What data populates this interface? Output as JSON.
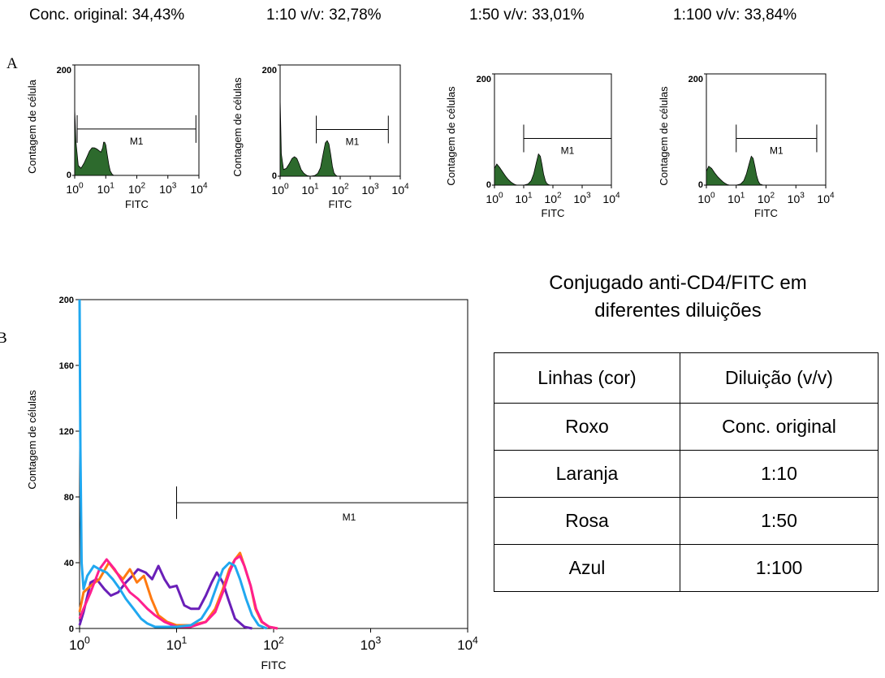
{
  "captions": [
    "Conc. original: 34,43%",
    "1:10 v/v: 32,78%",
    "1:50 v/v: 33,01%",
    "1:100 v/v: 33,84%"
  ],
  "panel_labels": [
    "A",
    "B"
  ],
  "colors": {
    "fill_green": "#2d6a2d",
    "purple": "#6a1fb8",
    "orange": "#ff7a10",
    "pink": "#ff1f8f",
    "blue": "#20a8f0"
  },
  "chart_data": [
    {
      "type": "area",
      "panel": "A1",
      "xlabel": "FITC",
      "ylabel": "Contagem de célula",
      "x_scale": "log",
      "xlim": [
        1,
        10000
      ],
      "ylim": [
        0,
        200
      ],
      "yticks": [
        "0",
        "200"
      ],
      "gate": {
        "label": "M1",
        "from": 1.2,
        "to": 8000
      },
      "x": [
        1,
        1.1,
        1.3,
        1.6,
        2,
        2.5,
        3,
        3.6,
        4.3,
        5.1,
        6,
        7,
        8,
        8.5,
        9.2,
        10,
        11,
        12.5,
        14,
        16,
        18,
        21,
        25,
        30,
        35
      ],
      "values": [
        120,
        60,
        18,
        13,
        22,
        34,
        44,
        50,
        50,
        48,
        45,
        42,
        50,
        60,
        60,
        55,
        40,
        20,
        8,
        2,
        0,
        0,
        0,
        0,
        0
      ]
    },
    {
      "type": "area",
      "panel": "A2",
      "xlabel": "FITC",
      "ylabel": "Contagem de células",
      "x_scale": "log",
      "xlim": [
        1,
        10000
      ],
      "ylim": [
        0,
        200
      ],
      "yticks": [
        "0",
        "200"
      ],
      "gate": {
        "label": "M1",
        "from": 16,
        "to": 4000
      },
      "x": [
        1,
        1.1,
        1.3,
        1.6,
        2,
        2.5,
        3,
        3.6,
        4.3,
        5,
        6,
        7,
        8,
        10,
        14,
        18,
        22,
        27,
        32,
        37,
        42,
        48,
        55,
        62,
        70,
        80
      ],
      "values": [
        140,
        40,
        12,
        14,
        22,
        32,
        35,
        32,
        22,
        12,
        6,
        3,
        1,
        0,
        1,
        5,
        15,
        40,
        60,
        64,
        58,
        40,
        18,
        6,
        2,
        0
      ]
    },
    {
      "type": "area",
      "panel": "A3",
      "xlabel": "FITC",
      "ylabel": "Contagem de células",
      "x_scale": "log",
      "xlim": [
        1,
        10000
      ],
      "ylim": [
        0,
        200
      ],
      "yticks": [
        "0",
        "200"
      ],
      "gate": {
        "label": "M1",
        "from": 10,
        "to": 10000
      },
      "x": [
        1,
        1.2,
        1.5,
        1.9,
        2.4,
        3,
        3.6,
        4.3,
        5,
        6,
        7,
        8,
        10,
        14,
        18,
        22,
        27,
        32,
        37,
        42,
        48,
        55,
        62,
        70,
        80
      ],
      "values": [
        30,
        38,
        32,
        24,
        16,
        10,
        6,
        3,
        1,
        0,
        0,
        0,
        0,
        2,
        8,
        20,
        40,
        56,
        52,
        38,
        20,
        8,
        3,
        1,
        0
      ]
    },
    {
      "type": "area",
      "panel": "A4",
      "xlabel": "FITC",
      "ylabel": "Contagem de células",
      "x_scale": "log",
      "xlim": [
        1,
        10000
      ],
      "ylim": [
        0,
        200
      ],
      "yticks": [
        "0",
        "200"
      ],
      "gate": {
        "label": "M1",
        "from": 10,
        "to": 5000
      },
      "x": [
        1,
        1.2,
        1.5,
        1.9,
        2.4,
        3,
        3.6,
        4.3,
        5,
        6,
        7,
        8,
        10,
        14,
        18,
        22,
        27,
        32,
        37,
        42,
        48,
        55,
        62,
        70,
        80
      ],
      "values": [
        25,
        34,
        30,
        22,
        15,
        10,
        6,
        3,
        1,
        0,
        0,
        0,
        0,
        2,
        8,
        20,
        38,
        52,
        48,
        34,
        18,
        7,
        2,
        1,
        0
      ]
    },
    {
      "type": "line",
      "panel": "B",
      "xlabel": "FITC",
      "ylabel": "Contagem de células",
      "x_scale": "log",
      "xlim": [
        1,
        10000
      ],
      "ylim": [
        0,
        200
      ],
      "yticks": [
        "0",
        "40",
        "80",
        "120",
        "160",
        "200"
      ],
      "xticks": [
        "10^0",
        "10^1",
        "10^2",
        "10^3",
        "10^4"
      ],
      "gate": {
        "label": "M1",
        "from": 10,
        "to": 10000
      },
      "series": [
        {
          "name": "Roxo",
          "color": "#6a1fb8",
          "x": [
            1,
            1.1,
            1.3,
            1.5,
            1.8,
            2.1,
            2.5,
            3,
            3.5,
            4,
            4.8,
            5.6,
            6.5,
            7.5,
            8.5,
            10,
            12,
            14,
            17,
            20,
            23,
            26,
            30,
            34,
            40,
            50,
            60
          ],
          "y": [
            2,
            10,
            28,
            30,
            24,
            20,
            22,
            28,
            32,
            36,
            34,
            30,
            38,
            30,
            25,
            26,
            14,
            12,
            12,
            20,
            28,
            34,
            28,
            18,
            6,
            1,
            0
          ]
        },
        {
          "name": "Laranja",
          "color": "#ff7a10",
          "x": [
            1,
            1.1,
            1.3,
            1.6,
            2,
            2.4,
            2.8,
            3.3,
            3.9,
            4.6,
            5.5,
            6.5,
            8,
            10,
            14,
            20,
            25,
            30,
            35,
            40,
            45,
            50,
            58,
            65,
            75,
            90,
            110
          ],
          "y": [
            10,
            22,
            26,
            30,
            40,
            34,
            30,
            36,
            28,
            32,
            18,
            8,
            4,
            2,
            2,
            4,
            12,
            24,
            36,
            42,
            46,
            38,
            26,
            12,
            4,
            1,
            0
          ]
        },
        {
          "name": "Rosa",
          "color": "#ff1f8f",
          "x": [
            1,
            1.1,
            1.3,
            1.6,
            1.9,
            2.3,
            2.8,
            3.3,
            4,
            5,
            6,
            7.5,
            10,
            14,
            20,
            25,
            30,
            35,
            40,
            45,
            50,
            58,
            66,
            76,
            90,
            110
          ],
          "y": [
            6,
            12,
            22,
            36,
            42,
            36,
            28,
            22,
            18,
            12,
            8,
            4,
            1,
            1,
            4,
            10,
            22,
            34,
            42,
            44,
            38,
            26,
            12,
            4,
            1,
            0
          ]
        },
        {
          "name": "Azul",
          "color": "#20a8f0",
          "x": [
            1,
            1.02,
            1.05,
            1.1,
            1.2,
            1.4,
            1.6,
            1.9,
            2.2,
            2.6,
            3,
            3.6,
            4.3,
            5,
            6,
            7.5,
            10,
            14,
            18,
            22,
            26,
            30,
            35,
            40,
            45,
            52,
            60,
            70,
            85
          ],
          "y": [
            200,
            110,
            40,
            24,
            32,
            38,
            36,
            34,
            30,
            24,
            18,
            12,
            6,
            3,
            1,
            1,
            1,
            2,
            6,
            14,
            26,
            36,
            40,
            38,
            30,
            18,
            8,
            2,
            0
          ]
        }
      ]
    }
  ],
  "title_lines": [
    "Conjugado anti-CD4/FITC em",
    "diferentes diluições"
  ],
  "table": {
    "headers": [
      "Linhas (cor)",
      "Diluição (v/v)"
    ],
    "rows": [
      [
        "Roxo",
        "Conc. original"
      ],
      [
        "Laranja",
        "1:10"
      ],
      [
        "Rosa",
        "1:50"
      ],
      [
        "Azul",
        "1:100"
      ]
    ]
  }
}
